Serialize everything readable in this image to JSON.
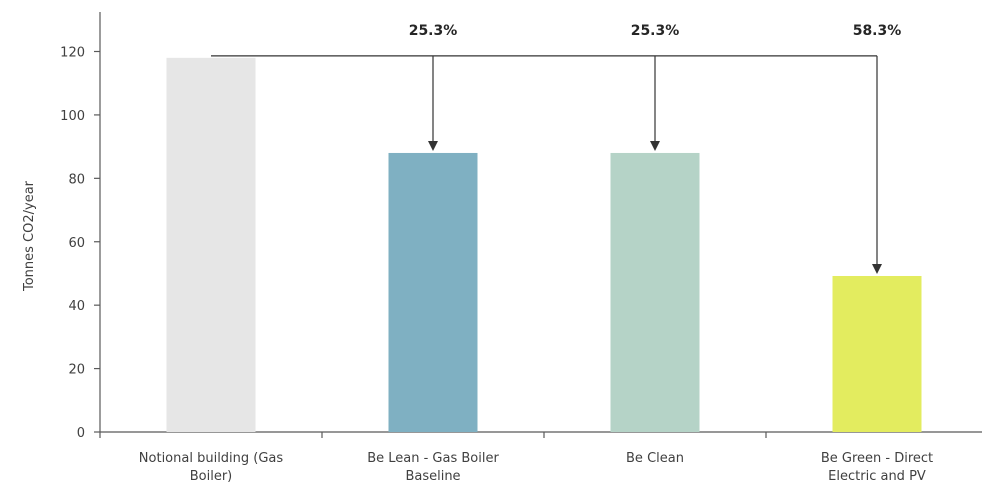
{
  "chart_data": {
    "type": "bar",
    "title": "",
    "xlabel": "",
    "ylabel": "Tonnes CO2/year",
    "ylim": [
      0,
      120
    ],
    "yticks": [
      0,
      20,
      40,
      60,
      80,
      100,
      120
    ],
    "grid": false,
    "legend": "none",
    "categories": [
      [
        "Notional building (Gas",
        "Boiler)"
      ],
      [
        "Be Lean - Gas Boiler",
        "Baseline"
      ],
      [
        "Be Clean"
      ],
      [
        "Be Green - Direct",
        "Electric and PV"
      ]
    ],
    "values": [
      118,
      88,
      88,
      49.2
    ],
    "colors": [
      "#e6e6e6",
      "#7fb0c2",
      "#b5d3c7",
      "#e3ec5f"
    ],
    "reduction_arrows": [
      {
        "from_category": 0,
        "to_category": 1,
        "label": "25.3%"
      },
      {
        "from_category": 0,
        "to_category": 2,
        "label": "25.3%"
      },
      {
        "from_category": 0,
        "to_category": 3,
        "label": "58.3%"
      }
    ]
  }
}
